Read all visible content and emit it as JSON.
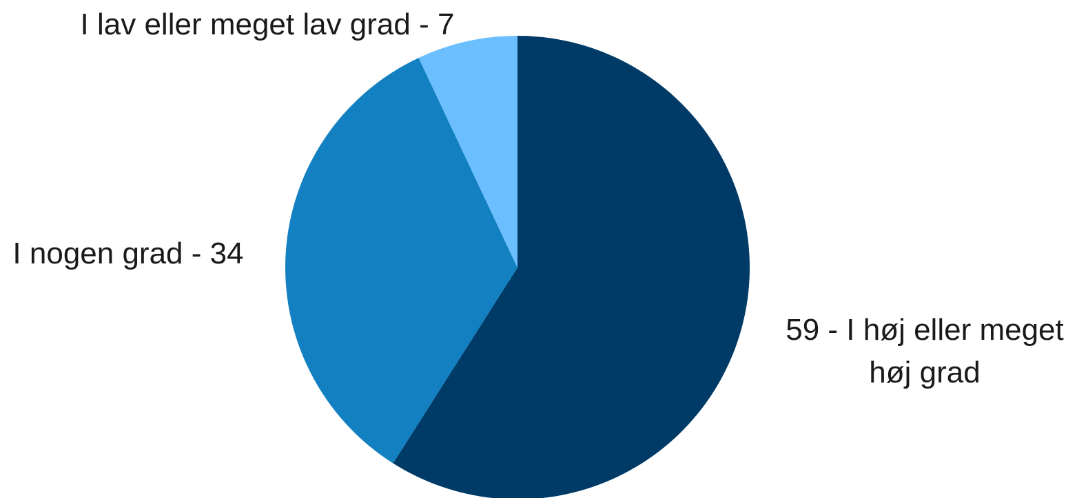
{
  "chart_data": {
    "type": "pie",
    "start_angle_deg": 0,
    "direction": "clockwise",
    "slices": [
      {
        "label": "I høj eller meget høj grad",
        "value": 59,
        "color": "#003a66",
        "label_lines": [
          "59 - I høj eller meget",
          "høj grad"
        ]
      },
      {
        "label": "I nogen grad",
        "value": 34,
        "color": "#1380c2",
        "label_lines": [
          "I nogen grad - 34"
        ]
      },
      {
        "label": "I lav eller meget lav grad",
        "value": 7,
        "color": "#6cbfff",
        "label_lines": [
          "I lav eller meget lav grad - 7"
        ]
      }
    ],
    "legend": "none",
    "data_labels": "outside"
  }
}
